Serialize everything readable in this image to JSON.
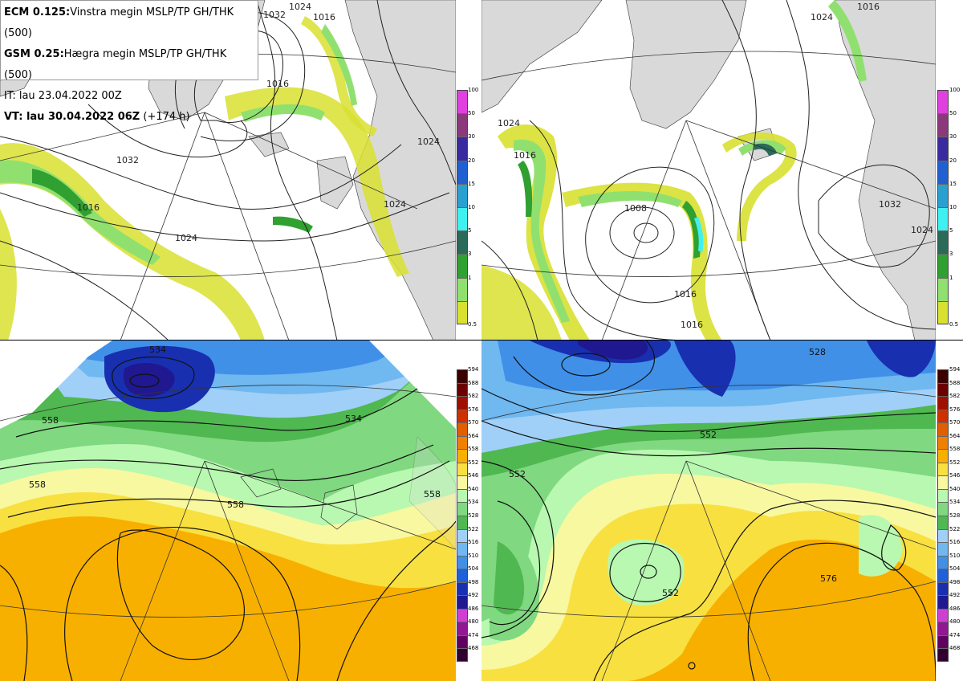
{
  "info": {
    "line1_bold": "ECM 0.125:",
    "line1_rest": "Vinstra megin MSLP/TP GH/THK (500)",
    "line2_bold": "GSM 0.25:",
    "line2_rest": "Hægra megin MSLP/TP GH/THK (500)",
    "line3": "IT: lau 23.04.2022 00Z",
    "line4_bold": "VT: lau 30.04.2022 06Z",
    "line4_rest": " (+174 h)"
  },
  "precip_scale": {
    "labels": [
      "100",
      "50",
      "30",
      "20",
      "15",
      "10",
      "5",
      "3",
      "1",
      "0.5"
    ],
    "colors": [
      "#e040e0",
      "#8a3a7a",
      "#3a2aa0",
      "#2060d0",
      "#2aa0d0",
      "#40f0f0",
      "#2a6a5a",
      "#30a030",
      "#90e070",
      "#d8e030"
    ]
  },
  "thickness_scale": {
    "labels": [
      "594",
      "588",
      "582",
      "576",
      "570",
      "564",
      "558",
      "552",
      "546",
      "540",
      "534",
      "528",
      "522",
      "516",
      "510",
      "504",
      "498",
      "492",
      "486",
      "480",
      "474",
      "468"
    ],
    "colors": [
      "#3a0000",
      "#6a0000",
      "#a01000",
      "#d03000",
      "#e06000",
      "#f08000",
      "#f8b000",
      "#f8e040",
      "#f8f8a0",
      "#b8f8b0",
      "#80d880",
      "#50b850",
      "#a0d0f8",
      "#70b8f0",
      "#4090e8",
      "#2060d8",
      "#1830b0",
      "#201890",
      "#d040d0",
      "#901890",
      "#600060",
      "#300030"
    ]
  },
  "colors": {
    "land": "#d9d9d9",
    "sea": "#ffffff",
    "isobar": "#222222",
    "graticule": "#333333"
  },
  "isobar_labels": {
    "tl": [
      "1032",
      "1024",
      "1016",
      "1016",
      "1032",
      "1024",
      "1024",
      "1016",
      "1024"
    ],
    "tr": [
      "1024",
      "1016",
      "1008",
      "1016",
      "1016",
      "1032",
      "1024",
      "1016",
      "1024"
    ],
    "bl": [
      "534",
      "558",
      "558",
      "558",
      "534",
      "558"
    ],
    "br": [
      "528",
      "552",
      "552",
      "552",
      "576"
    ]
  }
}
